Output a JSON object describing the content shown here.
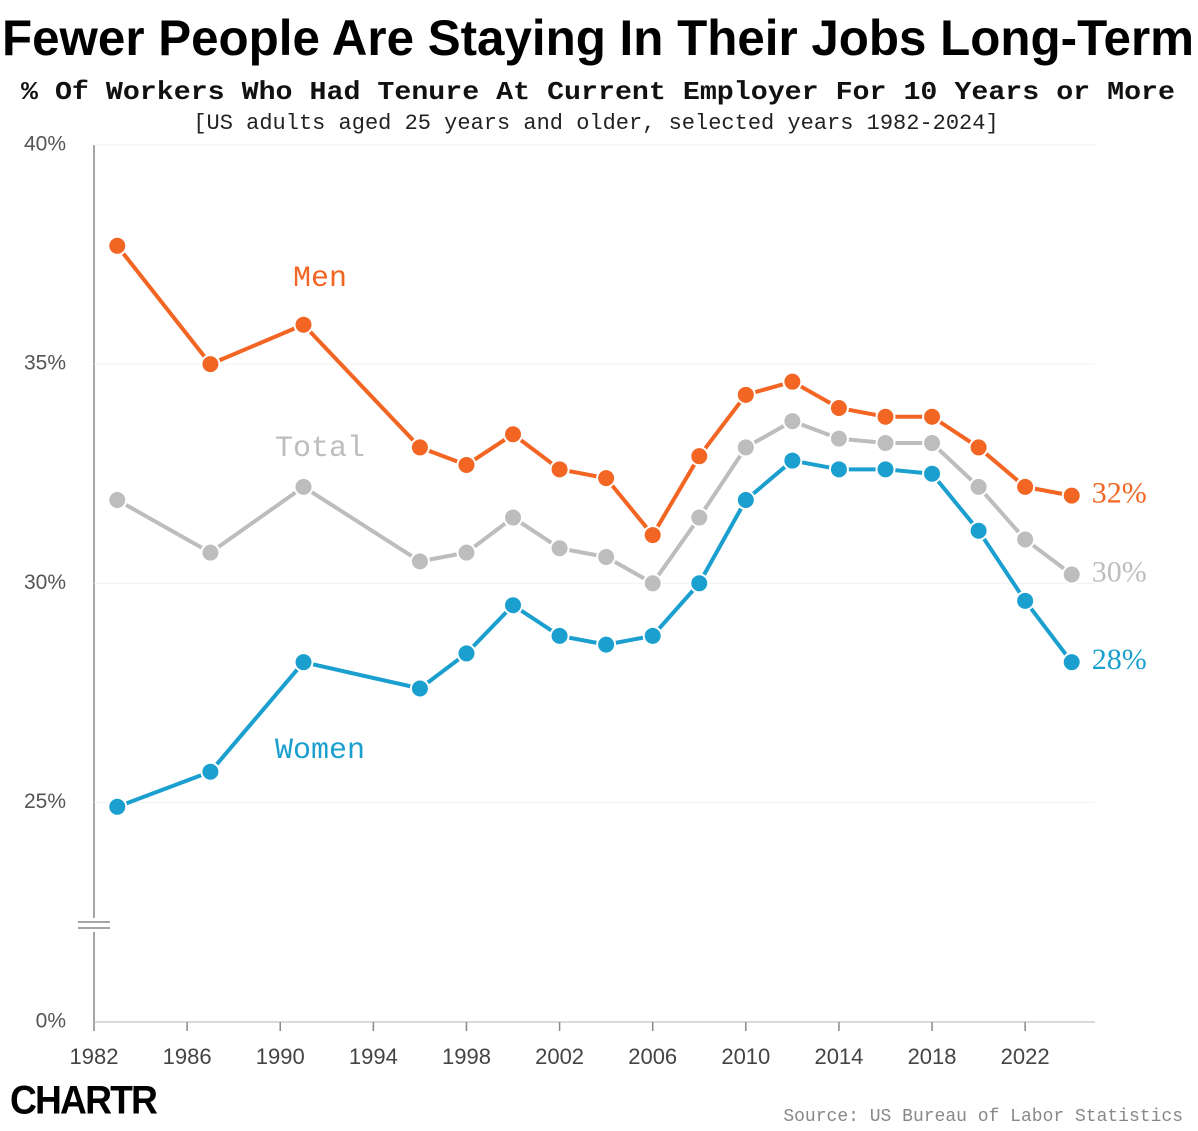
{
  "chart_data": {
    "type": "line",
    "title": "Fewer People Are Staying In Their Jobs Long-Term",
    "subtitle": "% Of Workers Who Had Tenure At Current Employer For 10 Years or More",
    "note": "[US adults aged 25 years and older, selected years 1982-2024]",
    "source": "Source: US Bureau of Labor Statistics",
    "logo": "CHARTR",
    "x": [
      1983,
      1987,
      1991,
      1996,
      1998,
      2000,
      2002,
      2004,
      2006,
      2008,
      2010,
      2012,
      2014,
      2016,
      2018,
      2020,
      2022,
      2024
    ],
    "series": [
      {
        "name": "Men",
        "color": "#f26522",
        "end_label": "32%",
        "values": [
          37.7,
          35.0,
          35.9,
          33.1,
          32.7,
          33.4,
          32.6,
          32.4,
          31.1,
          32.9,
          34.3,
          34.6,
          34.0,
          33.8,
          33.8,
          33.1,
          32.2,
          32.0
        ]
      },
      {
        "name": "Total",
        "color": "#bdbdbd",
        "end_label": "30%",
        "values": [
          31.9,
          30.7,
          32.2,
          30.5,
          30.7,
          31.5,
          30.8,
          30.6,
          30.0,
          31.5,
          33.1,
          33.7,
          33.3,
          33.2,
          33.2,
          32.2,
          31.0,
          30.2
        ]
      },
      {
        "name": "Women",
        "color": "#1a9fcf",
        "end_label": "28%",
        "values": [
          24.9,
          25.7,
          28.2,
          27.6,
          28.4,
          29.5,
          28.8,
          28.6,
          28.8,
          30.0,
          31.9,
          32.8,
          32.6,
          32.6,
          32.5,
          31.2,
          29.6,
          28.2
        ]
      }
    ],
    "xlim": [
      1982,
      2025
    ],
    "xticks": [
      1982,
      1986,
      1990,
      1994,
      1998,
      2002,
      2006,
      2010,
      2014,
      2018,
      2022
    ],
    "ylim": [
      0,
      40
    ],
    "y_axis_break": [
      1,
      22.5
    ],
    "yticks": [
      {
        "value": 0,
        "label": "0%"
      },
      {
        "value": 25,
        "label": "25%"
      },
      {
        "value": 30,
        "label": "30%"
      },
      {
        "value": 35,
        "label": "35%"
      },
      {
        "value": 40,
        "label": "40%"
      }
    ],
    "grid": true
  }
}
